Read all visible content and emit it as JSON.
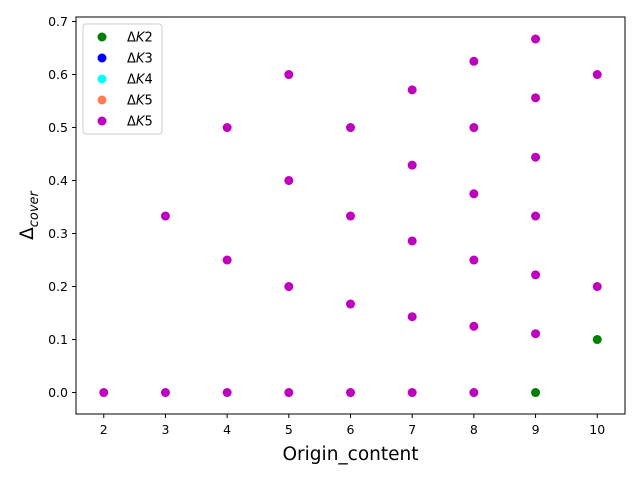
{
  "chart_data": {
    "type": "scatter",
    "xlabel": "Origin_content",
    "ylabel_main": "Δ",
    "ylabel_sub": "cover",
    "xlim": [
      1.55,
      10.45
    ],
    "ylim": [
      -0.0405,
      0.7085
    ],
    "xticks": [
      2,
      3,
      4,
      5,
      6,
      7,
      8,
      9,
      10
    ],
    "yticks": [
      0.0,
      0.1,
      0.2,
      0.3,
      0.4,
      0.5,
      0.6,
      0.7
    ],
    "ytick_labels": [
      "0.0",
      "0.1",
      "0.2",
      "0.3",
      "0.4",
      "0.5",
      "0.6",
      "0.7"
    ],
    "grid": false,
    "legend_position": "top-left",
    "series": [
      {
        "name": "ΔK2",
        "name_main": "Δ",
        "name_var": "K",
        "name_num": "2",
        "color": "#008000",
        "points": [
          [
            9,
            0.0
          ],
          [
            10,
            0.1
          ]
        ]
      },
      {
        "name": "ΔK3",
        "name_main": "Δ",
        "name_var": "K",
        "name_num": "3",
        "color": "#0000ff",
        "points": []
      },
      {
        "name": "ΔK4",
        "name_main": "Δ",
        "name_var": "K",
        "name_num": "4",
        "color": "#00ffff",
        "points": []
      },
      {
        "name": "ΔK5",
        "name_main": "Δ",
        "name_var": "K",
        "name_num": "5",
        "color": "#ff7f50",
        "points": []
      },
      {
        "name": "ΔK5",
        "name_main": "Δ",
        "name_var": "K",
        "name_num": "5",
        "color": "#bf00bf",
        "points": [
          [
            2,
            0.0
          ],
          [
            3,
            0.0
          ],
          [
            3,
            0.333
          ],
          [
            4,
            0.0
          ],
          [
            4,
            0.25
          ],
          [
            4,
            0.5
          ],
          [
            5,
            0.0
          ],
          [
            5,
            0.2
          ],
          [
            5,
            0.4
          ],
          [
            5,
            0.6
          ],
          [
            6,
            0.0
          ],
          [
            6,
            0.167
          ],
          [
            6,
            0.333
          ],
          [
            6,
            0.5
          ],
          [
            7,
            0.0
          ],
          [
            7,
            0.143
          ],
          [
            7,
            0.286
          ],
          [
            7,
            0.429
          ],
          [
            7,
            0.571
          ],
          [
            8,
            0.0
          ],
          [
            8,
            0.125
          ],
          [
            8,
            0.25
          ],
          [
            8,
            0.375
          ],
          [
            8,
            0.5
          ],
          [
            8,
            0.625
          ],
          [
            9,
            0.111
          ],
          [
            9,
            0.222
          ],
          [
            9,
            0.333
          ],
          [
            9,
            0.444
          ],
          [
            9,
            0.556
          ],
          [
            9,
            0.667
          ],
          [
            10,
            0.2
          ],
          [
            10,
            0.6
          ]
        ]
      }
    ]
  }
}
